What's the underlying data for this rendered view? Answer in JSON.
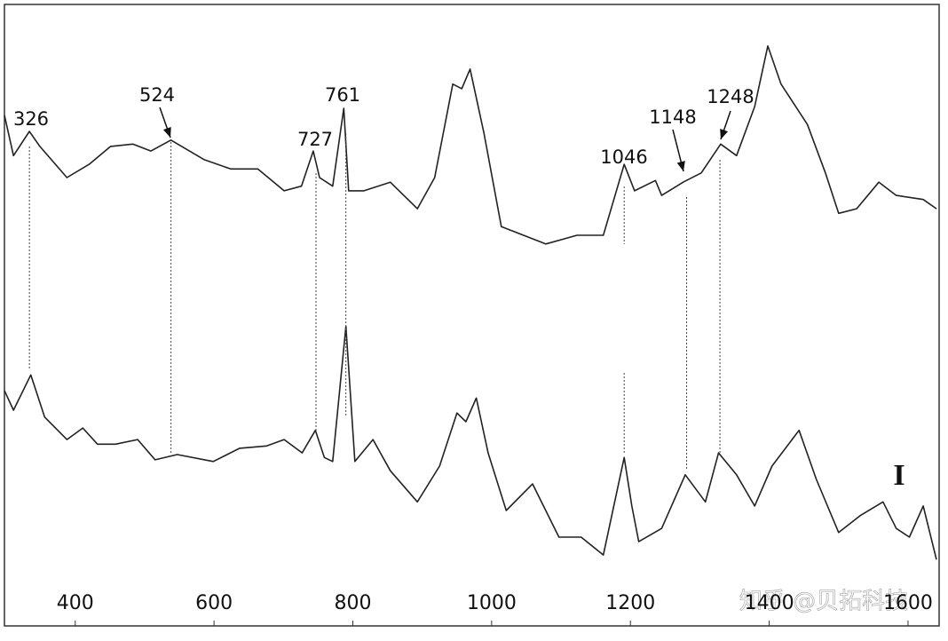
{
  "chart_data": {
    "type": "line",
    "xlim": [
      298,
      1641
    ],
    "ylim": [
      0,
      100
    ],
    "xticks": [
      400,
      600,
      800,
      1000,
      1200,
      1400,
      1600
    ],
    "color": "#222222",
    "series": [
      {
        "x": [
          298,
          311,
          334,
          349,
          388,
          420,
          451,
          483,
          509,
          538,
          586,
          624,
          663,
          701,
          726,
          743,
          752,
          771,
          787,
          794,
          816,
          854,
          893,
          918,
          944,
          957,
          969,
          989,
          1014,
          1046,
          1078,
          1123,
          1161,
          1191,
          1206,
          1236,
          1245,
          1276,
          1302,
          1330,
          1353,
          1379,
          1398,
          1417,
          1455,
          1481,
          1500,
          1526,
          1558,
          1583,
          1622,
          1641
        ],
        "values": [
          80.8,
          73.8,
          78,
          75.4,
          70,
          72.3,
          75.4,
          75.8,
          74.6,
          76.5,
          73.1,
          71.5,
          71.5,
          67.7,
          68.5,
          74.6,
          70,
          68.5,
          82,
          67.7,
          67.7,
          69.2,
          64.6,
          70,
          86.2,
          85.4,
          88.8,
          77.7,
          61.5,
          60,
          58.5,
          60,
          60,
          72.3,
          67.7,
          69.5,
          66.9,
          69.2,
          70.8,
          75.8,
          73.8,
          82.3,
          92.8,
          86.2,
          79.2,
          70.8,
          63.8,
          64.6,
          69.2,
          66.9,
          66.2,
          64.6
        ]
      },
      {
        "x": [
          298,
          311,
          336,
          356,
          388,
          411,
          432,
          458,
          490,
          515,
          547,
          599,
          637,
          676,
          701,
          727,
          746,
          759,
          771,
          790,
          803,
          829,
          854,
          893,
          925,
          950,
          963,
          978,
          995,
          1021,
          1059,
          1097,
          1129,
          1161,
          1191,
          1202,
          1212,
          1245,
          1279,
          1308,
          1327,
          1353,
          1379,
          1404,
          1443,
          1468,
          1500,
          1532,
          1564,
          1583,
          1602,
          1622,
          1641
        ],
        "values": [
          33.1,
          29.7,
          35.8,
          28.5,
          24.6,
          26.6,
          23.8,
          23.8,
          24.6,
          21.1,
          22,
          20.8,
          23.1,
          23.5,
          24.6,
          22.3,
          26.2,
          21.5,
          20.8,
          44.2,
          20.8,
          24.6,
          19.2,
          13.8,
          20,
          29.2,
          27.7,
          31.8,
          22.3,
          12.3,
          16.9,
          7.7,
          7.7,
          4.6,
          21.5,
          13.1,
          6.9,
          9.2,
          18.5,
          13.8,
          22.3,
          18.5,
          13.1,
          20,
          26.2,
          17.7,
          8.5,
          11.5,
          13.8,
          9.2,
          7.7,
          13.1,
          3.8
        ]
      }
    ],
    "annotations": [
      {
        "text": "326",
        "x": 334
      },
      {
        "text": "524",
        "x": 538,
        "arrow": true
      },
      {
        "text": "727",
        "x": 747
      },
      {
        "text": "761",
        "x": 790
      },
      {
        "text": "1046",
        "x": 1191
      },
      {
        "text": "1148",
        "x": 1281,
        "arrow": true
      },
      {
        "text": "1248",
        "x": 1329,
        "arrow": true
      }
    ],
    "series_label": "I",
    "watermark": "知乎 @贝拓科技"
  }
}
